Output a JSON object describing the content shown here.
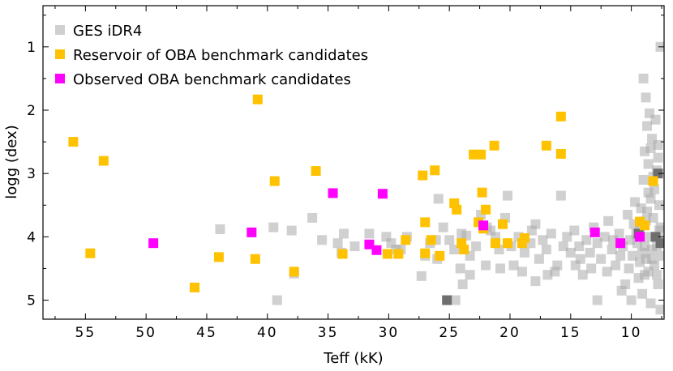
{
  "chart_data": {
    "type": "scatter",
    "xlabel": "Teff (kK)",
    "ylabel": "logg (dex)",
    "xlim": [
      58.5,
      7.3
    ],
    "ylim": [
      5.3,
      0.35
    ],
    "x_ticks": [
      55,
      50,
      45,
      40,
      35,
      30,
      25,
      20,
      15,
      10
    ],
    "y_ticks": [
      1,
      2,
      3,
      4,
      5
    ],
    "grid": false,
    "legend_position": "top-left",
    "series": [
      {
        "name": "GES iDR4",
        "color": "#a9a9a9",
        "opacity": 0.55,
        "points": [
          [
            43.9,
            3.88
          ],
          [
            39.5,
            3.85
          ],
          [
            38.0,
            3.9
          ],
          [
            37.8,
            4.58
          ],
          [
            39.2,
            5.0
          ],
          [
            36.3,
            3.7
          ],
          [
            35.5,
            4.05
          ],
          [
            34.2,
            4.1
          ],
          [
            33.7,
            3.95
          ],
          [
            33.9,
            4.25
          ],
          [
            32.8,
            4.15
          ],
          [
            31.6,
            3.95
          ],
          [
            30.2,
            4.0
          ],
          [
            29.8,
            4.1
          ],
          [
            29.0,
            4.2
          ],
          [
            28.5,
            4.0
          ],
          [
            27.3,
            4.62
          ],
          [
            27.0,
            4.3
          ],
          [
            26.6,
            4.1
          ],
          [
            26.0,
            4.35
          ],
          [
            25.9,
            3.4
          ],
          [
            25.5,
            3.85
          ],
          [
            25.0,
            4.05
          ],
          [
            24.6,
            4.2
          ],
          [
            24.1,
            4.5
          ],
          [
            23.9,
            4.75
          ],
          [
            23.6,
            3.98
          ],
          [
            23.3,
            4.3
          ],
          [
            22.8,
            4.15
          ],
          [
            22.4,
            3.65
          ],
          [
            22.0,
            4.45
          ],
          [
            21.6,
            3.9
          ],
          [
            21.2,
            4.0
          ],
          [
            20.9,
            4.2
          ],
          [
            20.4,
            3.7
          ],
          [
            20.2,
            3.35
          ],
          [
            19.9,
            4.15
          ],
          [
            19.7,
            4.45
          ],
          [
            19.3,
            4.0
          ],
          [
            18.8,
            4.25
          ],
          [
            18.3,
            4.1
          ],
          [
            17.9,
            3.8
          ],
          [
            17.6,
            4.35
          ],
          [
            17.3,
            4.05
          ],
          [
            17.0,
            4.2
          ],
          [
            16.6,
            3.95
          ],
          [
            16.1,
            4.45
          ],
          [
            15.8,
            3.35
          ],
          [
            15.3,
            4.0
          ],
          [
            15.0,
            4.25
          ],
          [
            14.7,
            3.9
          ],
          [
            14.3,
            4.15
          ],
          [
            14.0,
            4.6
          ],
          [
            13.7,
            4.05
          ],
          [
            13.4,
            4.25
          ],
          [
            13.1,
            3.85
          ],
          [
            12.8,
            4.1
          ],
          [
            12.5,
            4.35
          ],
          [
            12.2,
            4.0
          ],
          [
            11.9,
            3.75
          ],
          [
            11.6,
            4.2
          ],
          [
            11.3,
            4.45
          ],
          [
            11.0,
            3.95
          ],
          [
            10.7,
            4.15
          ],
          [
            10.5,
            4.75
          ],
          [
            10.3,
            3.65
          ],
          [
            10.1,
            4.05
          ],
          [
            9.9,
            4.3
          ],
          [
            9.7,
            3.45
          ],
          [
            9.5,
            4.1
          ],
          [
            9.3,
            3.85
          ],
          [
            9.1,
            4.25
          ],
          [
            8.9,
            4.6
          ],
          [
            8.7,
            3.6
          ],
          [
            8.5,
            4.0
          ],
          [
            8.3,
            4.35
          ],
          [
            8.1,
            3.25
          ],
          [
            7.9,
            4.15
          ],
          [
            7.7,
            3.9
          ],
          [
            7.5,
            4.05
          ],
          [
            9.0,
            1.5
          ],
          [
            8.8,
            1.8
          ],
          [
            8.5,
            2.05
          ],
          [
            8.7,
            2.25
          ],
          [
            8.3,
            2.45
          ],
          [
            8.9,
            2.65
          ],
          [
            8.6,
            2.85
          ],
          [
            8.2,
            3.05
          ],
          [
            7.6,
            1.0
          ],
          [
            8.0,
            2.15
          ],
          [
            7.8,
            2.55
          ],
          [
            7.9,
            2.95
          ],
          [
            8.4,
            3.4
          ],
          [
            8.8,
            3.75
          ],
          [
            9.2,
            3.55
          ],
          [
            9.6,
            3.95
          ],
          [
            8.1,
            4.45
          ],
          [
            8.6,
            4.55
          ],
          [
            9.4,
            4.65
          ],
          [
            10.8,
            4.85
          ],
          [
            9.1,
            4.9
          ],
          [
            8.4,
            5.05
          ],
          [
            7.8,
            4.75
          ],
          [
            7.6,
            5.15
          ],
          [
            10.0,
            5.0
          ],
          [
            12.8,
            5.0
          ],
          [
            24.5,
            5.0
          ],
          [
            17.9,
            4.7
          ],
          [
            16.3,
            4.55
          ],
          [
            14.6,
            4.45
          ],
          [
            26.1,
            4.05
          ],
          [
            29.4,
            4.2
          ],
          [
            24.0,
            3.95
          ],
          [
            23.3,
            4.6
          ],
          [
            21.9,
            3.85
          ],
          [
            20.8,
            4.5
          ],
          [
            19.0,
            4.55
          ],
          [
            18.2,
            3.9
          ],
          [
            16.9,
            4.6
          ],
          [
            15.6,
            4.15
          ],
          [
            14.2,
            4.35
          ],
          [
            13.3,
            4.5
          ],
          [
            12.0,
            4.55
          ],
          [
            11.5,
            4.05
          ],
          [
            10.9,
            4.3
          ],
          [
            10.2,
            4.5
          ],
          [
            9.8,
            3.8
          ],
          [
            9.3,
            4.4
          ],
          [
            8.9,
            4.15
          ],
          [
            8.2,
            3.7
          ],
          [
            7.7,
            3.5
          ],
          [
            7.5,
            4.3
          ],
          [
            7.9,
            4.6
          ],
          [
            8.6,
            3.3
          ],
          [
            9.0,
            3.1
          ],
          [
            7.8,
            2.75
          ],
          [
            8.4,
            2.6
          ],
          [
            7.6,
            3.85
          ],
          [
            8.3,
            4.2
          ],
          [
            8.8,
            4.35
          ]
        ]
      },
      {
        "name": "",
        "color": "#6e6e6e",
        "opacity": 1,
        "points": [
          [
            25.2,
            5.0
          ],
          [
            7.6,
            4.1
          ],
          [
            8.0,
            4.0
          ],
          [
            7.8,
            3.0
          ],
          [
            9.4,
            3.95
          ]
        ]
      },
      {
        "name": "Reservoir of OBA benchmark candidates",
        "color": "#ffc200",
        "opacity": 1,
        "points": [
          [
            56.0,
            2.5
          ],
          [
            53.5,
            2.8
          ],
          [
            54.6,
            4.26
          ],
          [
            46.0,
            4.8
          ],
          [
            44.0,
            4.32
          ],
          [
            41.0,
            4.35
          ],
          [
            40.8,
            1.83
          ],
          [
            39.4,
            3.12
          ],
          [
            37.8,
            4.55
          ],
          [
            36.0,
            2.96
          ],
          [
            33.8,
            4.27
          ],
          [
            30.1,
            4.27
          ],
          [
            29.2,
            4.27
          ],
          [
            28.6,
            4.05
          ],
          [
            27.2,
            3.03
          ],
          [
            27.0,
            3.77
          ],
          [
            27.0,
            4.26
          ],
          [
            26.5,
            4.05
          ],
          [
            26.2,
            2.95
          ],
          [
            25.8,
            4.3
          ],
          [
            24.6,
            3.47
          ],
          [
            24.4,
            3.57
          ],
          [
            24.0,
            4.1
          ],
          [
            23.8,
            4.2
          ],
          [
            23.0,
            2.7
          ],
          [
            22.6,
            3.77
          ],
          [
            22.4,
            2.7
          ],
          [
            22.3,
            3.3
          ],
          [
            22.2,
            3.87
          ],
          [
            22.0,
            3.57
          ],
          [
            21.3,
            2.56
          ],
          [
            21.2,
            4.1
          ],
          [
            20.6,
            3.8
          ],
          [
            20.2,
            4.1
          ],
          [
            19.0,
            4.1
          ],
          [
            18.8,
            4.02
          ],
          [
            17.0,
            2.56
          ],
          [
            15.8,
            2.1
          ],
          [
            15.8,
            2.69
          ],
          [
            9.3,
            3.76
          ],
          [
            8.9,
            3.82
          ],
          [
            8.2,
            3.12
          ]
        ]
      },
      {
        "name": "Observed OBA benchmark candidates",
        "color": "#ff00ff",
        "opacity": 1,
        "points": [
          [
            49.4,
            4.1
          ],
          [
            41.3,
            3.93
          ],
          [
            34.6,
            3.31
          ],
          [
            31.6,
            4.12
          ],
          [
            31.0,
            4.21
          ],
          [
            30.5,
            3.32
          ],
          [
            22.2,
            3.82
          ],
          [
            13.0,
            3.93
          ],
          [
            10.9,
            4.1
          ],
          [
            9.3,
            4.0
          ]
        ]
      }
    ]
  }
}
